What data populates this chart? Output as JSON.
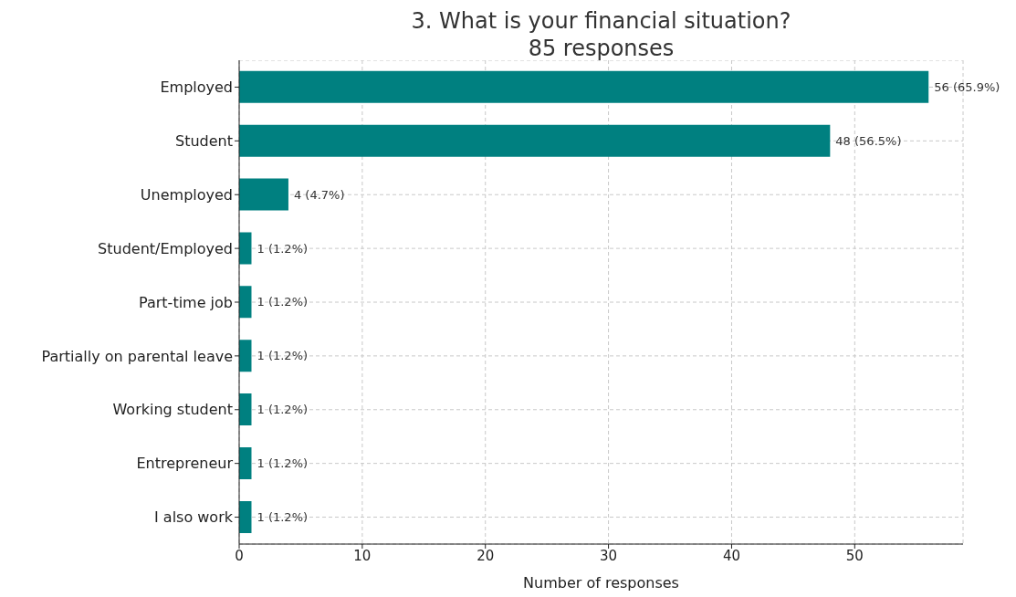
{
  "chart_data": {
    "type": "bar",
    "orientation": "horizontal",
    "title": "3. What is your financial situation?\n85 responses",
    "xlabel": "Number of responses",
    "categories": [
      "Employed",
      "Student",
      "Unemployed",
      "Student/Employed",
      "Part-time job",
      "Partially on parental leave",
      "Working student",
      "Entrepreneur",
      "I also work"
    ],
    "values": [
      56,
      48,
      4,
      1,
      1,
      1,
      1,
      1,
      1
    ],
    "value_labels": [
      "56 (65.9%)",
      "48 (56.5%)",
      "4 (4.7%)",
      "1 (1.2%)",
      "1 (1.2%)",
      "1 (1.2%)",
      "1 (1.2%)",
      "1 (1.2%)",
      "1 (1.2%)"
    ],
    "color": "#008080",
    "xlim": [
      0,
      58.8
    ],
    "xticks": [
      0,
      10,
      20,
      30,
      40,
      50
    ],
    "grid": true
  }
}
